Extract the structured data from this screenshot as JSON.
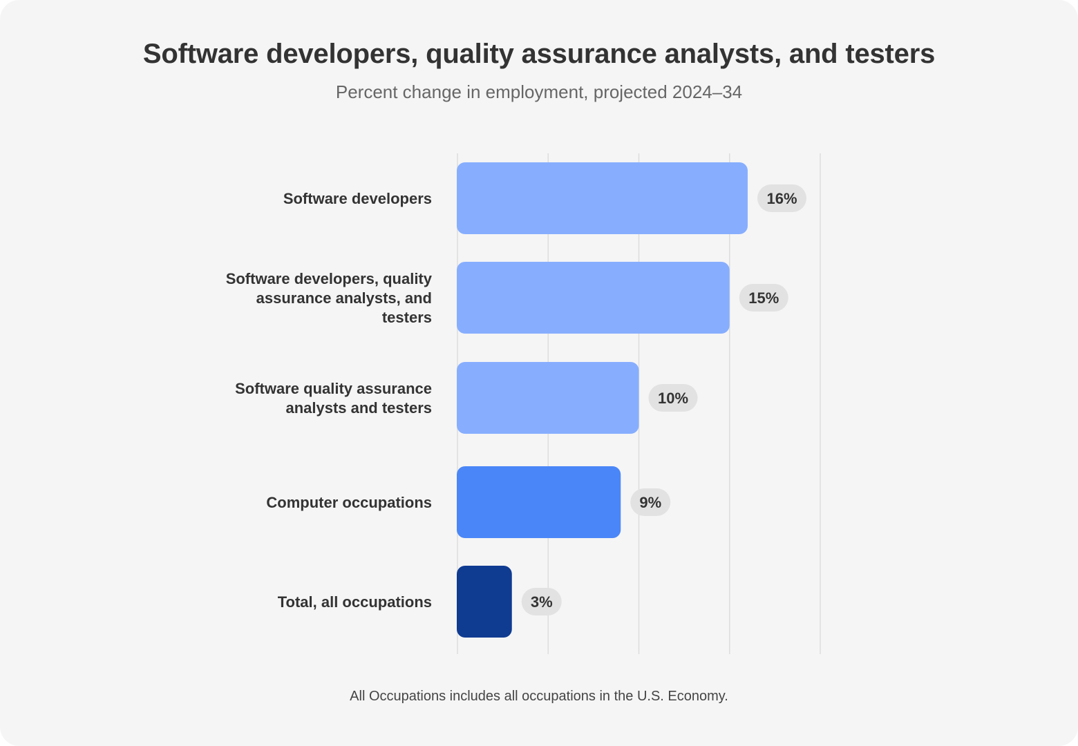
{
  "title": "Software developers, quality assurance analysts, and testers",
  "subtitle": "Percent change in employment, projected 2024–34",
  "footnote": "All Occupations includes all occupations in the U.S. Economy.",
  "colors": {
    "light_bar": "#87aefe",
    "medium_bar": "#4a86f7",
    "dark_bar": "#0f3b91",
    "value_pill": "#e2e2e2",
    "gridline": "#dddddd"
  },
  "chart_data": {
    "type": "bar",
    "orientation": "horizontal",
    "categories": [
      "Software developers",
      "Software developers, quality assurance analysts, and testers",
      "Software quality assurance analysts and testers",
      "Computer occupations",
      "Total, all occupations"
    ],
    "category_label_lines": [
      [
        "Software developers"
      ],
      [
        "Software developers, quality",
        "assurance analysts, and",
        "testers"
      ],
      [
        "Software quality assurance",
        "analysts and testers"
      ],
      [
        "Computer occupations"
      ],
      [
        "Total, all occupations"
      ]
    ],
    "values": [
      16,
      15,
      10,
      9,
      3
    ],
    "value_labels": [
      "16%",
      "15%",
      "10%",
      "9%",
      "3%"
    ],
    "bar_colors": [
      "#87aefe",
      "#87aefe",
      "#87aefe",
      "#4a86f7",
      "#0f3b91"
    ],
    "xlim": [
      0,
      20
    ],
    "grid": true,
    "title": "Software developers, quality assurance analysts, and testers",
    "subtitle": "Percent change in employment, projected 2024–34",
    "xlabel": "",
    "ylabel": ""
  }
}
